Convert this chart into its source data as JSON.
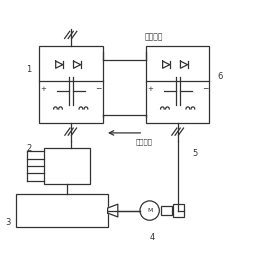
{
  "bg_color": "#ffffff",
  "line_color": "#333333",
  "label1": "1",
  "label2": "2",
  "label3": "3",
  "label4": "4",
  "label5": "5",
  "label6": "6",
  "text_dcbus": "直流母线",
  "text_energy": "能量方向",
  "b1x": 0.15,
  "b1y": 0.56,
  "b1w": 0.25,
  "b1h": 0.3,
  "b6x": 0.57,
  "b6y": 0.56,
  "b6w": 0.25,
  "b6h": 0.3
}
